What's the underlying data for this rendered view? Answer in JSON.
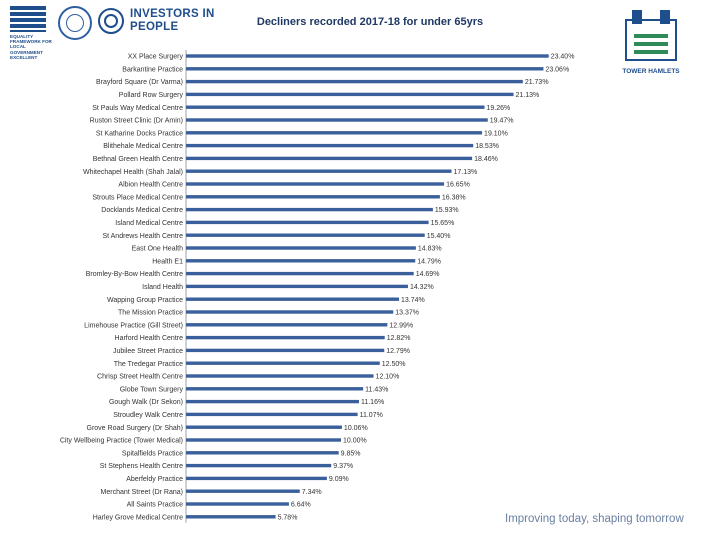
{
  "logos": {
    "equality": {
      "text": "EQUALITY FRAMEWORK FOR LOCAL GOVERNMENT EXCELLENT"
    },
    "investors": {
      "text": "INVESTORS IN PEOPLE"
    },
    "tower_hamlets": {
      "text": "TOWER HAMLETS"
    }
  },
  "footer": {
    "tagline": "Improving today, shaping tomorrow"
  },
  "colors": {
    "bar": "#3a5f9b",
    "title": "#1f3864",
    "brand": "#1f4e8c"
  },
  "chart_data": {
    "type": "bar",
    "orientation": "horizontal",
    "title": "Decliners recorded 2017-18 for under 65yrs",
    "value_suffix": "%",
    "xlim": [
      0,
      24
    ],
    "categories": [
      "XX Place Surgery",
      "Barkantine Practice",
      "Brayford Square (Dr Varma)",
      "Pollard Row Surgery",
      "St Pauls Way Medical Centre",
      "Ruston Street Clinic (Dr Amin)",
      "St Katharine Docks Practice",
      "Blithehale Medical Centre",
      "Bethnal Green Health Centre",
      "Whitechapel Health (Shah Jalal)",
      "Albion Health Centre",
      "Strouts Place Medical Centre",
      "Docklands Medical Centre",
      "Island Medical Centre",
      "St Andrews Health Centre",
      "East One Health",
      "Health E1",
      "Bromley-By-Bow Health Centre",
      "Island Health",
      "Wapping Group Practice",
      "The Mission Practice",
      "Limehouse Practice (Gill Street)",
      "Harford Health Centre",
      "Jubilee Street Practice",
      "The Tredegar Practice",
      "Chrisp Street Health Centre",
      "Globe Town Surgery",
      "Gough Walk (Dr Sekon)",
      "Stroudley Walk Centre",
      "Grove Road Surgery (Dr Shah)",
      "City Wellbeing Practice (Tower Medical)",
      "Spitalfields Practice",
      "St Stephens Health Centre",
      "Aberfeldy Practice",
      "Merchant Street (Dr Rana)",
      "All Saints Practice",
      "Harley Grove Medical Centre"
    ],
    "values": [
      23.4,
      23.06,
      21.73,
      21.13,
      19.26,
      19.47,
      19.1,
      18.53,
      18.46,
      17.13,
      16.65,
      16.38,
      15.93,
      15.65,
      15.4,
      14.83,
      14.79,
      14.69,
      14.32,
      13.74,
      13.37,
      12.99,
      12.82,
      12.79,
      12.5,
      12.1,
      11.43,
      11.16,
      11.07,
      10.06,
      10.0,
      9.85,
      9.37,
      9.09,
      7.34,
      6.64,
      5.78
    ],
    "labels": [
      "23.40%",
      "23.06%",
      "21.73%",
      "21.13%",
      "19.26%",
      "19.47%",
      "19.10%",
      "18.53%",
      "18.46%",
      "17.13%",
      "16.65%",
      "16.38%",
      "15.93%",
      "15.65%",
      "15.40%",
      "14.83%",
      "14.79%",
      "14.69%",
      "14.32%",
      "13.74%",
      "13.37%",
      "12.99%",
      "12.82%",
      "12.79%",
      "12.50%",
      "12.10%",
      "11.43%",
      "11.16%",
      "11.07%",
      "10.06%",
      "10.00%",
      "9.85%",
      "9.37%",
      "9.09%",
      "7.34%",
      "6.64%",
      "5.78%"
    ]
  }
}
